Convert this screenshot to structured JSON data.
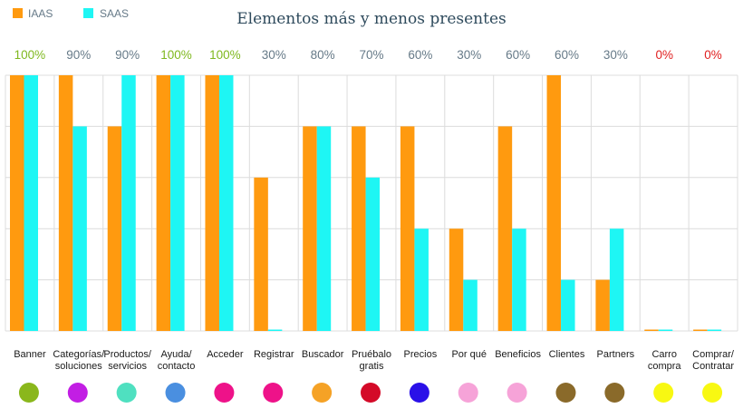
{
  "chart_data": {
    "type": "bar",
    "title": "Elementos más y menos presentes",
    "categories": [
      "Banner",
      "Categorías/ soluciones",
      "Productos/ servicios",
      "Ayuda/ contacto",
      "Acceder",
      "Registrar",
      "Buscador",
      "Pruébalo gratis",
      "Precios",
      "Por qué",
      "Beneficios",
      "Clientes",
      "Partners",
      "Carro compra",
      "Comprar/ Contratar"
    ],
    "category_lines": [
      [
        "Banner"
      ],
      [
        "Categorías/",
        "soluciones"
      ],
      [
        "Productos/",
        "servicios"
      ],
      [
        "Ayuda/",
        "contacto"
      ],
      [
        "Acceder"
      ],
      [
        "Registrar"
      ],
      [
        "Buscador"
      ],
      [
        "Pruébalo",
        "gratis"
      ],
      [
        "Precios"
      ],
      [
        "Por qué"
      ],
      [
        "Beneficios"
      ],
      [
        "Clientes"
      ],
      [
        "Partners"
      ],
      [
        "Carro",
        "compra"
      ],
      [
        "Comprar/",
        "Contratar"
      ]
    ],
    "totals": [
      "100%",
      "90%",
      "90%",
      "100%",
      "100%",
      "30%",
      "80%",
      "70%",
      "60%",
      "30%",
      "60%",
      "60%",
      "30%",
      "0%",
      "0%"
    ],
    "total_colors": [
      "#7fb81f",
      "#667a88",
      "#667a88",
      "#7fb81f",
      "#7fb81f",
      "#667a88",
      "#667a88",
      "#667a88",
      "#667a88",
      "#667a88",
      "#667a88",
      "#667a88",
      "#667a88",
      "#e02020",
      "#e02020"
    ],
    "series": [
      {
        "name": "IAAS",
        "color": "#ff9a0f",
        "values": [
          100,
          100,
          80,
          100,
          100,
          60,
          80,
          80,
          80,
          40,
          80,
          100,
          20,
          0,
          0
        ]
      },
      {
        "name": "SAAS",
        "color": "#1ef6f4",
        "values": [
          100,
          80,
          100,
          100,
          100,
          0,
          80,
          60,
          40,
          20,
          40,
          20,
          40,
          0,
          0
        ]
      }
    ],
    "ylim": [
      0,
      100
    ],
    "grid": true,
    "legend": "top-left",
    "category_dot_colors": [
      "#8ab71c",
      "#c21ee4",
      "#4fe0c0",
      "#4a8fe0",
      "#ee1289",
      "#ee1289",
      "#f5a226",
      "#d40a28",
      "#2a10e8",
      "#f6a3d8",
      "#f6a3d8",
      "#8a6a2a",
      "#8a6a2a",
      "#f8f812",
      "#f8f812"
    ]
  }
}
